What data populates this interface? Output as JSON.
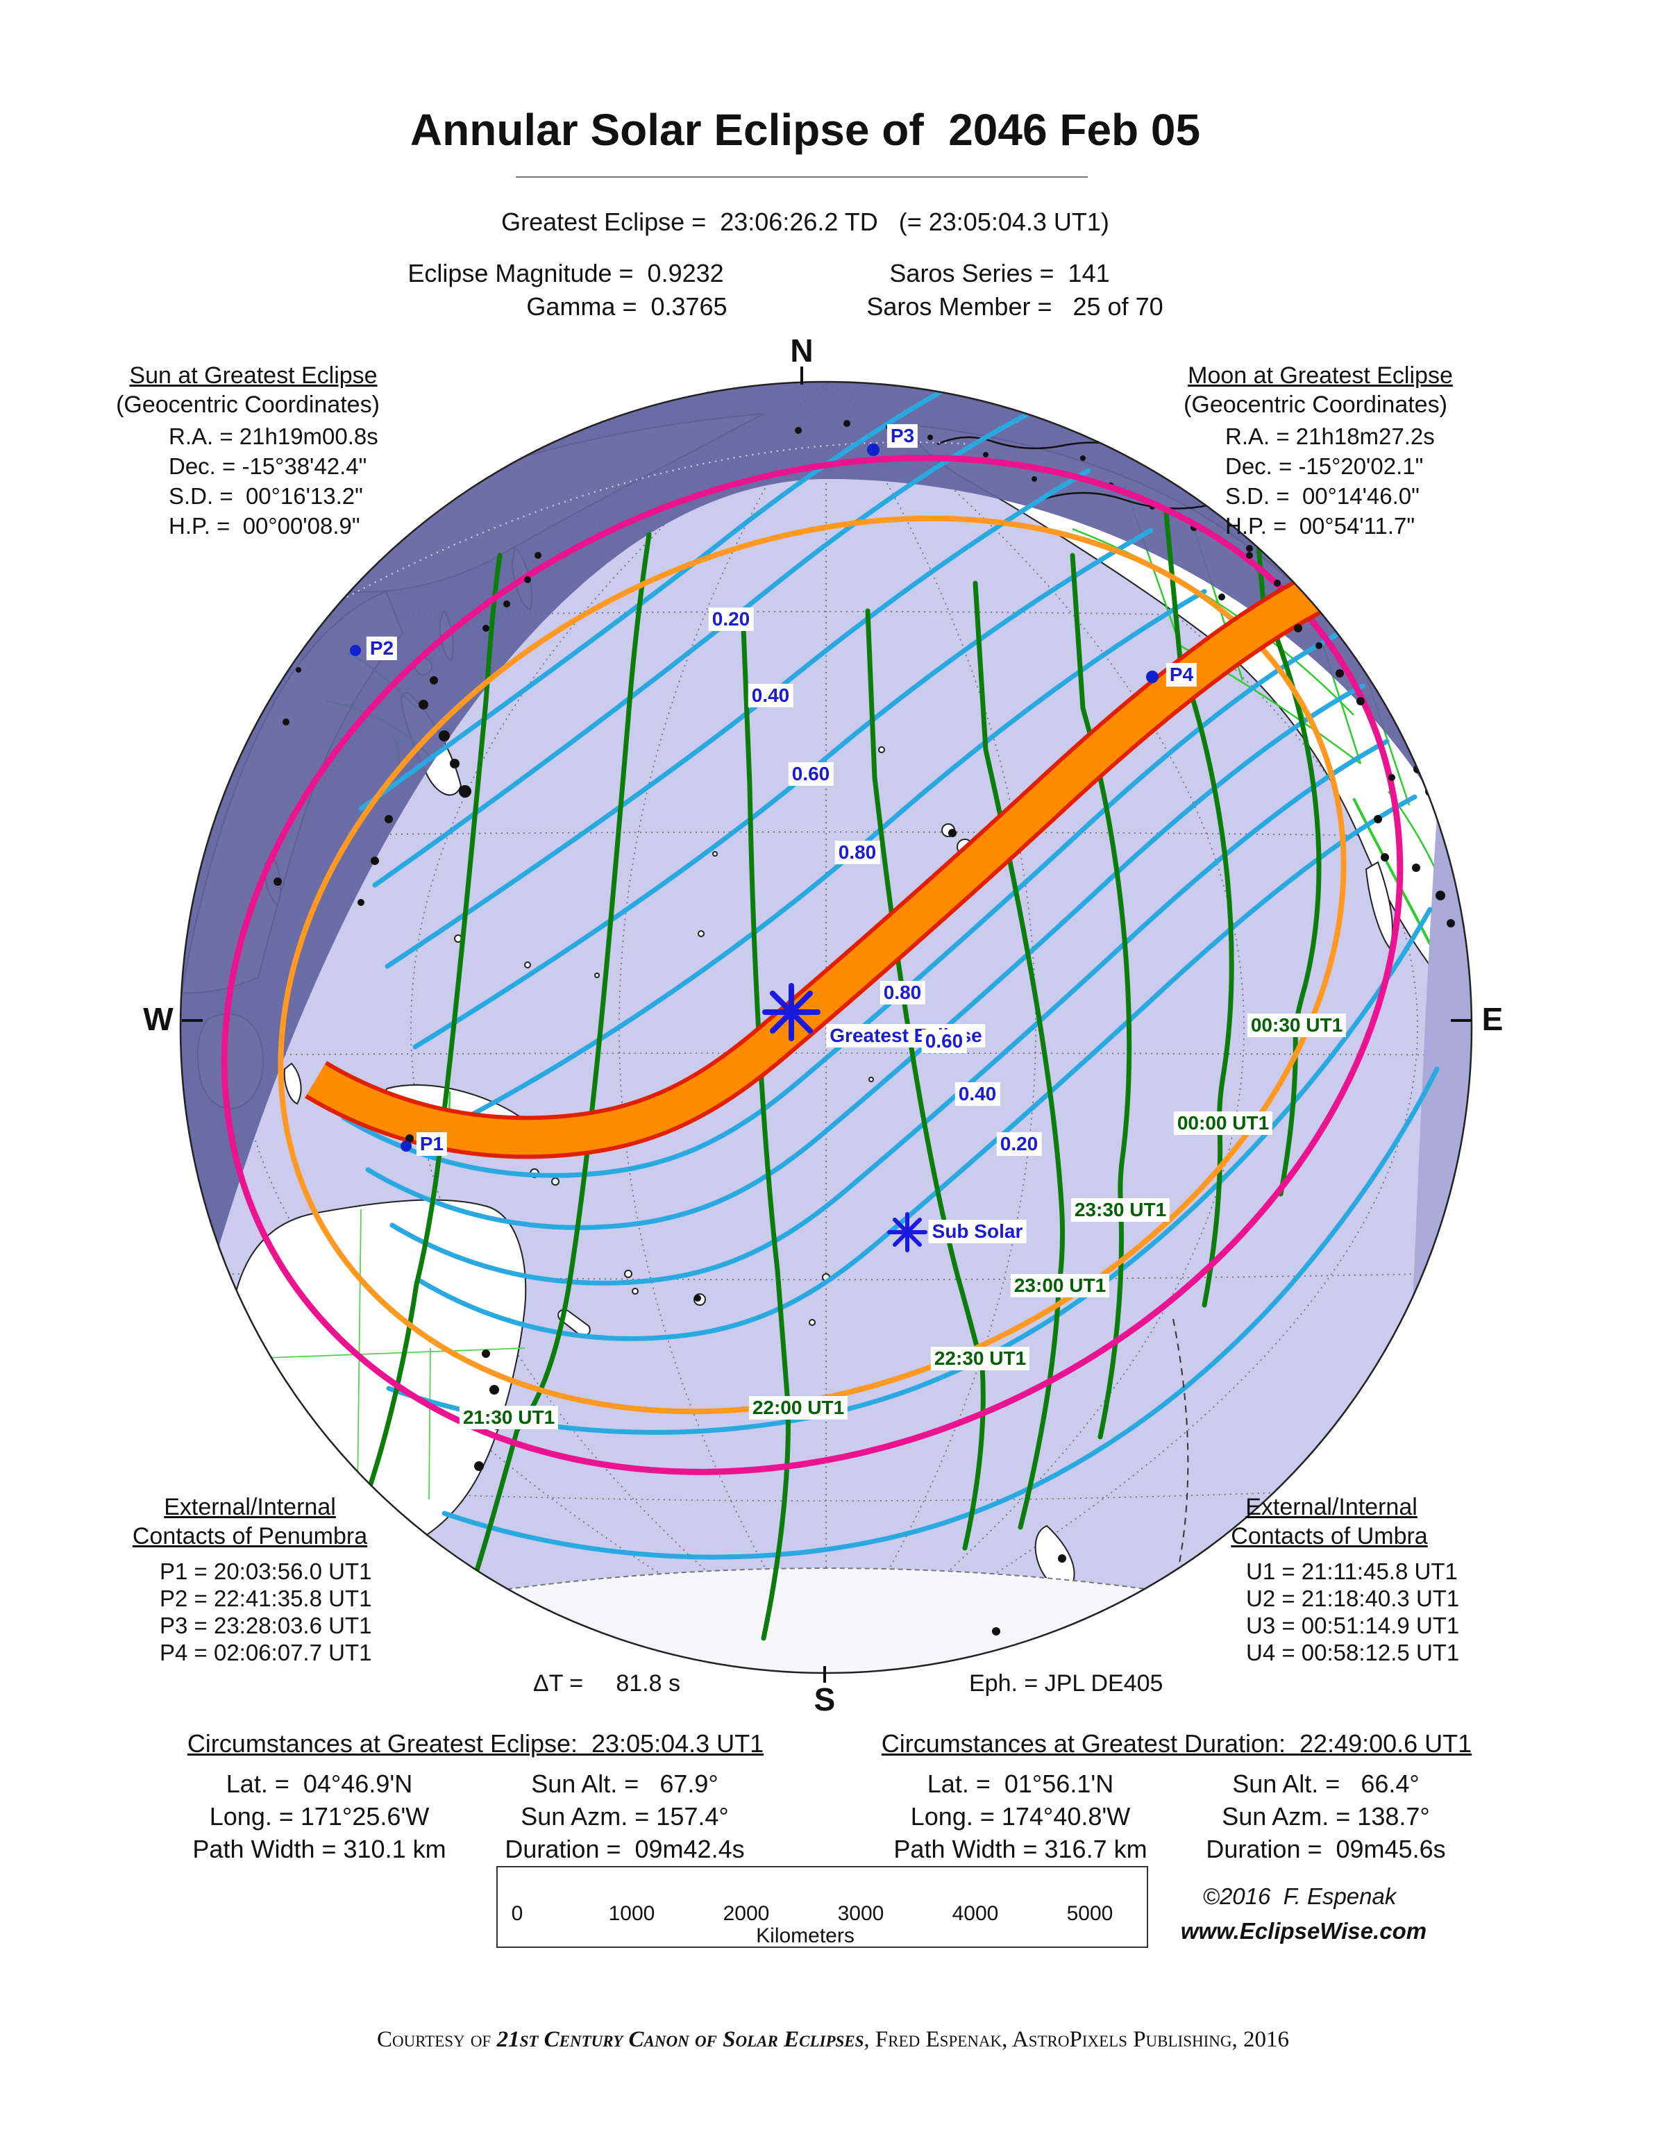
{
  "title": "Annular Solar Eclipse of  2046 Feb 05",
  "header": {
    "greatest_eclipse": "Greatest Eclipse =  23:06:26.2 TD   (= 23:05:04.3 UT1)",
    "magnitude": "Eclipse Magnitude =  0.9232",
    "gamma": "Gamma =  0.3765",
    "saros_series": "Saros Series =  141",
    "saros_member": "Saros Member =   25 of 70"
  },
  "sun": {
    "heading": "Sun at Greatest Eclipse",
    "sub": "(Geocentric Coordinates)",
    "lines": [
      "R.A. = 21h19m00.8s",
      "Dec. = -15°38'42.4\"",
      "S.D. =  00°16'13.2\"",
      "H.P. =  00°00'08.9\""
    ]
  },
  "moon": {
    "heading": "Moon at Greatest Eclipse",
    "sub": "(Geocentric Coordinates)",
    "lines": [
      "R.A. = 21h18m27.2s",
      "Dec. = -15°20'02.1\"",
      "S.D. =  00°14'46.0\"",
      "H.P. =  00°54'11.7\""
    ]
  },
  "compass": {
    "n": "N",
    "s": "S",
    "e": "E",
    "w": "W"
  },
  "map_labels": {
    "greatest_eclipse": "Greatest Eclipse",
    "sub_solar": "Sub Solar",
    "p1": "P1",
    "p2": "P2",
    "p3": "P3",
    "p4": "P4",
    "mag_nw": [
      "0.20",
      "0.40",
      "0.60",
      "0.80"
    ],
    "mag_se": [
      "0.80",
      "0.60",
      "0.40",
      "0.20"
    ],
    "times": [
      "21:30 UT1",
      "22:00 UT1",
      "22:30 UT1",
      "23:00 UT1",
      "23:30 UT1",
      "00:00 UT1",
      "00:30 UT1"
    ]
  },
  "penumbra": {
    "heading1": "External/Internal",
    "heading2": "Contacts of Penumbra",
    "lines": [
      "P1 = 20:03:56.0 UT1",
      "P2 = 22:41:35.8 UT1",
      "P3 = 23:28:03.6 UT1",
      "P4 = 02:06:07.7 UT1"
    ]
  },
  "umbra": {
    "heading1": "External/Internal",
    "heading2": "Contacts of Umbra",
    "lines": [
      "U1 = 21:11:45.8 UT1",
      "U2 = 21:18:40.3 UT1",
      "U3 = 00:51:14.9 UT1",
      "U4 = 00:58:12.5 UT1"
    ]
  },
  "delta_t": "ΔT =     81.8 s",
  "ephemeris": "Eph. = JPL DE405",
  "circ_eclipse": {
    "heading": "Circumstances at Greatest Eclipse:  23:05:04.3 UT1",
    "rows": [
      [
        "Lat. =  04°46.9'N",
        "Sun Alt. =   67.9°"
      ],
      [
        "Long. = 171°25.6'W",
        "Sun Azm. = 157.4°"
      ],
      [
        "Path Width = 310.1 km",
        "Duration =  09m42.4s"
      ]
    ]
  },
  "circ_duration": {
    "heading": "Circumstances at Greatest Duration:  22:49:00.6 UT1",
    "rows": [
      [
        "Lat. =  01°56.1'N",
        "Sun Alt. =   66.4°"
      ],
      [
        "Long. = 174°40.8'W",
        "Sun Azm. = 138.7°"
      ],
      [
        "Path Width = 316.7 km",
        "Duration =  09m45.6s"
      ]
    ]
  },
  "scalebar": {
    "ticks": [
      "0",
      "1000",
      "2000",
      "3000",
      "4000",
      "5000"
    ],
    "unit": "Kilometers"
  },
  "credit": {
    "line1": "©2016  F. Espenak",
    "line2": "www.EclipseWise.com"
  },
  "footer": {
    "prefix": "Courtesy of ",
    "book": "21st Century Canon of Solar Eclipses",
    "suffix": ", Fred Espenak, AstroPixels Publishing, 2016"
  },
  "colors": {
    "ocean": "#cbcbee",
    "night": "#62649f",
    "twilight": "#a9aad8",
    "path_fill": "#ff8c00",
    "path_edge": "#e02000",
    "penumbra_limit": "#ec1390",
    "sunrise_sunset": "#ff9922",
    "magnitude_contour": "#2aa9e0",
    "time_contour": "#0b7d0b",
    "border_green": "#2ecc2e",
    "label_blue": "#1b1bd0",
    "label_green": "#056005"
  }
}
